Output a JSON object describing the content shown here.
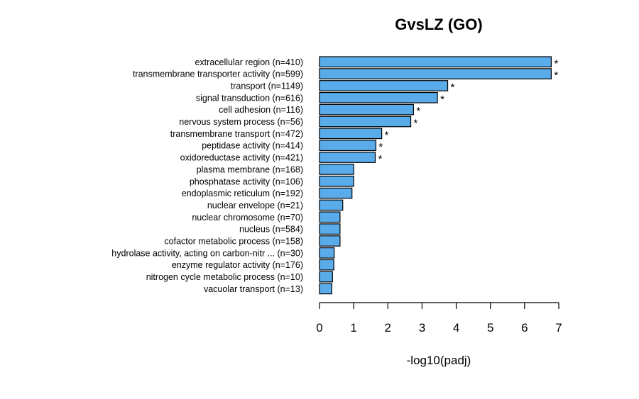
{
  "chart_data": {
    "type": "bar",
    "orientation": "horizontal",
    "title": "GvsLZ (GO)",
    "xlabel": "-log10(padj)",
    "ylabel": "",
    "xlim": [
      0,
      7
    ],
    "xticks": [
      0,
      1,
      2,
      3,
      4,
      5,
      6,
      7
    ],
    "bar_color": "#5aabea",
    "bar_edge_color": "#000000",
    "grid": false,
    "categories": [
      "extracellular region (n=410)",
      "transmembrane transporter activity (n=599)",
      "transport (n=1149)",
      "signal transduction (n=616)",
      "cell adhesion (n=116)",
      "nervous system process (n=56)",
      "transmembrane transport (n=472)",
      "peptidase activity (n=414)",
      "oxidoreductase activity (n=421)",
      "plasma membrane (n=168)",
      "phosphatase activity (n=106)",
      "endoplasmic reticulum (n=192)",
      "nuclear envelope (n=21)",
      "nuclear chromosome (n=70)",
      "nucleus (n=584)",
      "cofactor metabolic process (n=158)",
      "hydrolase activity, acting on carbon-nitr ... (n=30)",
      "enzyme regulator activity (n=176)",
      "nitrogen cycle metabolic process (n=10)",
      "vacuolar transport (n=13)"
    ],
    "values": [
      6.78,
      6.78,
      3.75,
      3.45,
      2.75,
      2.67,
      1.82,
      1.65,
      1.63,
      1.0,
      1.0,
      0.95,
      0.68,
      0.6,
      0.6,
      0.6,
      0.43,
      0.42,
      0.38,
      0.36
    ],
    "significant": [
      true,
      true,
      true,
      true,
      true,
      true,
      true,
      true,
      true,
      false,
      false,
      false,
      false,
      false,
      false,
      false,
      false,
      false,
      false,
      false
    ],
    "significance_marker": "*"
  }
}
